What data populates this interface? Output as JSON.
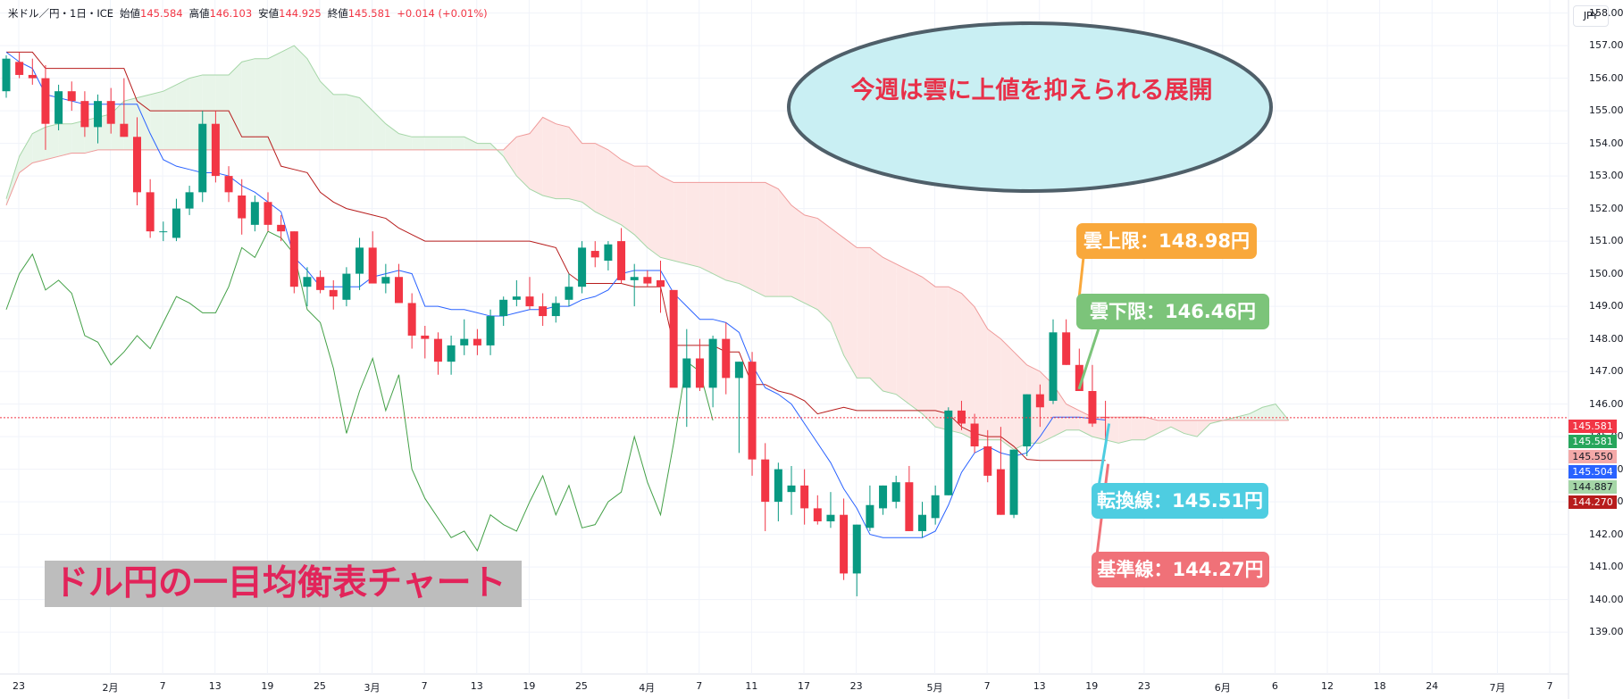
{
  "header": {
    "symbol": "米ドル／円・1日・ICE",
    "open_label": "始値",
    "open": "145.584",
    "high_label": "高値",
    "high": "146.103",
    "low_label": "安値",
    "low": "144.925",
    "close_label": "終値",
    "close": "145.581",
    "change": "+0.014 (+0.01%)"
  },
  "currency_button": "JPY",
  "price_tags": [
    {
      "label": "145.581",
      "color": "#f23645"
    },
    {
      "label": "145.581",
      "color": "#26a65b"
    },
    {
      "label": "145.550",
      "color": "#f4a9a8"
    },
    {
      "label": "145.504",
      "color": "#2962ff"
    },
    {
      "label": "144.887",
      "color": "#a5d6a7"
    },
    {
      "label": "144.270",
      "color": "#b71c1c"
    }
  ],
  "annotations": {
    "ellipse_text": "今週は雲に上値を抑えられる展開",
    "cloud_upper": "雲上限：148.98円",
    "cloud_lower": "雲下限：146.46円",
    "tenkan": "転換線：145.51円",
    "kijun": "基準線：144.27円",
    "title": "ドル円の一目均衡表チャート"
  },
  "colors": {
    "up": "#089981",
    "down": "#f23645",
    "tenkan": "#2962ff",
    "kijun": "#b71c1c",
    "chikou": "#43a047",
    "span_a": "#a5d6a7",
    "span_b": "#ef9a9a",
    "cloud_bull": "#e8f5e9",
    "cloud_bear": "#fde7e6",
    "callout_upper": "#f9a83b",
    "callout_lower": "#7cc47a",
    "callout_tenkan": "#4ecde1",
    "callout_kijun": "#f07178",
    "ellipse_fill": "#c9eff3",
    "ellipse_border": "#4f5f69"
  },
  "chart_data": {
    "type": "candlestick",
    "ylim": [
      138.4,
      158.4
    ],
    "y_ticks": [
      139,
      140,
      141,
      142,
      143,
      144,
      145,
      146,
      147,
      148,
      149,
      150,
      151,
      152,
      153,
      154,
      155,
      156,
      157,
      158
    ],
    "y_tick_labels": [
      "139.000",
      "140.000",
      "141.000",
      "142.000",
      "143.000",
      "144.000",
      "145.000",
      "146.000",
      "147.000",
      "148.000",
      "149.000",
      "150.000",
      "151.000",
      "152.000",
      "153.000",
      "154.000",
      "155.000",
      "156.000",
      "157.000",
      "158.000"
    ],
    "x_ticks": [
      {
        "label": "23",
        "i": 0
      },
      {
        "label": "2月",
        "i": 7
      },
      {
        "label": "7",
        "i": 11
      },
      {
        "label": "13",
        "i": 15
      },
      {
        "label": "19",
        "i": 19
      },
      {
        "label": "25",
        "i": 23
      },
      {
        "label": "3月",
        "i": 27
      },
      {
        "label": "7",
        "i": 31
      },
      {
        "label": "13",
        "i": 35
      },
      {
        "label": "19",
        "i": 39
      },
      {
        "label": "25",
        "i": 43
      },
      {
        "label": "4月",
        "i": 48
      },
      {
        "label": "7",
        "i": 52
      },
      {
        "label": "11",
        "i": 56
      },
      {
        "label": "17",
        "i": 60
      },
      {
        "label": "23",
        "i": 64
      },
      {
        "label": "5月",
        "i": 70
      },
      {
        "label": "7",
        "i": 74
      },
      {
        "label": "13",
        "i": 78
      },
      {
        "label": "19",
        "i": 82
      },
      {
        "label": "23",
        "i": 86
      },
      {
        "label": "6月",
        "i": 92
      },
      {
        "label": "6",
        "i": 96
      },
      {
        "label": "12",
        "i": 100
      },
      {
        "label": "18",
        "i": 104
      },
      {
        "label": "24",
        "i": 108
      },
      {
        "label": "7月",
        "i": 113
      },
      {
        "label": "7",
        "i": 117
      }
    ],
    "candles": [
      [
        155.6,
        156.7,
        155.4,
        156.6
      ],
      [
        156.5,
        156.8,
        156.0,
        156.1
      ],
      [
        156.1,
        156.6,
        155.8,
        156.0
      ],
      [
        156.0,
        156.4,
        153.8,
        154.6
      ],
      [
        154.6,
        155.8,
        154.4,
        155.6
      ],
      [
        155.6,
        155.9,
        155.0,
        155.3
      ],
      [
        155.3,
        155.6,
        154.2,
        154.5
      ],
      [
        154.5,
        155.5,
        154.0,
        155.3
      ],
      [
        155.3,
        155.7,
        154.3,
        154.6
      ],
      [
        154.6,
        156.0,
        154.2,
        154.2
      ],
      [
        154.2,
        154.8,
        152.1,
        152.5
      ],
      [
        152.5,
        152.9,
        151.1,
        151.3
      ],
      [
        151.3,
        151.6,
        151.0,
        151.3
      ],
      [
        151.1,
        152.3,
        151.0,
        152.0
      ],
      [
        152.0,
        152.7,
        151.8,
        152.5
      ],
      [
        152.5,
        155.0,
        152.2,
        154.6
      ],
      [
        154.6,
        155.0,
        152.8,
        153.0
      ],
      [
        153.0,
        153.3,
        152.2,
        152.5
      ],
      [
        152.4,
        152.9,
        151.2,
        151.7
      ],
      [
        151.5,
        152.4,
        151.3,
        152.2
      ],
      [
        152.2,
        152.5,
        151.3,
        151.5
      ],
      [
        151.5,
        151.8,
        151.0,
        151.3
      ],
      [
        151.3,
        151.3,
        149.4,
        149.6
      ],
      [
        149.6,
        150.2,
        149.0,
        149.9
      ],
      [
        149.9,
        150.1,
        149.4,
        149.5
      ],
      [
        149.5,
        149.8,
        148.9,
        149.3
      ],
      [
        149.2,
        150.2,
        149.0,
        150.0
      ],
      [
        150.0,
        151.1,
        149.5,
        150.8
      ],
      [
        150.8,
        151.3,
        149.8,
        149.7
      ],
      [
        149.7,
        150.3,
        149.4,
        149.9
      ],
      [
        149.9,
        150.3,
        149.2,
        149.1
      ],
      [
        149.1,
        149.4,
        147.7,
        148.1
      ],
      [
        148.1,
        148.4,
        147.4,
        148.0
      ],
      [
        148.0,
        148.2,
        146.9,
        147.3
      ],
      [
        147.3,
        148.1,
        146.9,
        147.8
      ],
      [
        147.8,
        148.6,
        147.5,
        148.0
      ],
      [
        148.0,
        148.3,
        147.5,
        147.8
      ],
      [
        147.8,
        148.9,
        147.5,
        148.7
      ],
      [
        148.7,
        149.3,
        148.4,
        149.2
      ],
      [
        149.2,
        149.8,
        149.0,
        149.3
      ],
      [
        149.3,
        149.9,
        148.9,
        149.0
      ],
      [
        149.0,
        149.4,
        148.4,
        148.7
      ],
      [
        148.7,
        149.3,
        148.5,
        149.1
      ],
      [
        149.2,
        150.0,
        149.0,
        149.6
      ],
      [
        149.6,
        151.0,
        149.4,
        150.8
      ],
      [
        150.7,
        151.0,
        150.2,
        150.5
      ],
      [
        150.4,
        151.0,
        150.1,
        150.9
      ],
      [
        151.0,
        151.4,
        149.7,
        149.8
      ],
      [
        149.8,
        150.3,
        149.0,
        149.9
      ],
      [
        149.9,
        150.1,
        149.6,
        149.7
      ],
      [
        149.8,
        150.4,
        148.8,
        149.6
      ],
      [
        149.5,
        149.5,
        146.6,
        146.5
      ],
      [
        146.5,
        148.3,
        145.3,
        147.4
      ],
      [
        147.4,
        148.0,
        146.4,
        146.5
      ],
      [
        146.5,
        148.1,
        145.9,
        148.0
      ],
      [
        148.0,
        148.5,
        146.3,
        146.8
      ],
      [
        146.8,
        147.3,
        144.5,
        147.3
      ],
      [
        147.3,
        147.6,
        143.8,
        144.3
      ],
      [
        144.3,
        144.8,
        142.1,
        143.0
      ],
      [
        143.0,
        144.2,
        142.4,
        144.0
      ],
      [
        143.3,
        144.1,
        142.6,
        143.5
      ],
      [
        143.5,
        144.0,
        142.3,
        142.8
      ],
      [
        142.8,
        143.2,
        142.3,
        142.4
      ],
      [
        142.4,
        143.3,
        142.2,
        142.6
      ],
      [
        142.6,
        143.1,
        140.6,
        140.8
      ],
      [
        140.8,
        142.3,
        140.1,
        142.3
      ],
      [
        142.2,
        143.5,
        142.1,
        142.9
      ],
      [
        142.8,
        143.5,
        142.6,
        143.5
      ],
      [
        143.0,
        143.8,
        142.8,
        143.6
      ],
      [
        143.6,
        144.1,
        142.1,
        142.1
      ],
      [
        142.1,
        143.0,
        141.9,
        142.6
      ],
      [
        142.5,
        143.5,
        142.3,
        143.2
      ],
      [
        143.2,
        145.9,
        143.2,
        145.8
      ],
      [
        145.8,
        146.1,
        145.2,
        145.4
      ],
      [
        145.4,
        145.7,
        144.5,
        144.7
      ],
      [
        144.7,
        145.2,
        143.6,
        143.8
      ],
      [
        144.0,
        145.3,
        142.6,
        142.6
      ],
      [
        142.6,
        144.5,
        142.5,
        144.6
      ],
      [
        144.7,
        146.3,
        144.4,
        146.3
      ],
      [
        146.3,
        146.6,
        145.3,
        145.9
      ],
      [
        146.1,
        148.6,
        146.0,
        148.2
      ],
      [
        148.2,
        148.6,
        147.2,
        147.2
      ],
      [
        147.2,
        147.7,
        146.6,
        146.4
      ],
      [
        146.4,
        147.2,
        145.3,
        145.4
      ],
      [
        145.6,
        146.1,
        144.9,
        145.581
      ]
    ],
    "tenkan": [
      156.8,
      156.5,
      156.3,
      155.5,
      155.4,
      155.3,
      155.2,
      155.2,
      155.2,
      155.2,
      155.2,
      154.3,
      153.5,
      153.3,
      153.2,
      153.1,
      153.1,
      153.0,
      152.7,
      152.5,
      152.2,
      151.9,
      150.5,
      150.1,
      149.6,
      149.6,
      149.6,
      149.6,
      149.9,
      150.0,
      150.1,
      150.0,
      149.0,
      149.0,
      148.9,
      148.9,
      148.8,
      148.7,
      148.7,
      148.8,
      148.9,
      148.9,
      149.0,
      149.0,
      149.2,
      149.3,
      149.5,
      150.0,
      150.1,
      150.1,
      150.1,
      149.4,
      149.0,
      148.6,
      148.6,
      148.5,
      148.2,
      147.2,
      146.5,
      146.3,
      146.0,
      145.4,
      144.8,
      144.2,
      143.4,
      142.8,
      142.0,
      141.9,
      141.9,
      141.9,
      141.9,
      142.1,
      142.9,
      143.9,
      144.5,
      144.7,
      144.5,
      144.4,
      144.5,
      145.0,
      145.6,
      145.6,
      145.6,
      145.55,
      145.51
    ],
    "kijun": [
      156.8,
      156.8,
      156.8,
      156.3,
      156.3,
      156.3,
      156.3,
      156.3,
      156.3,
      156.3,
      155.3,
      155.0,
      155.0,
      155.0,
      155.0,
      155.0,
      155.0,
      155.0,
      154.2,
      154.2,
      154.2,
      153.3,
      153.2,
      153.1,
      152.5,
      152.2,
      152.0,
      151.9,
      151.8,
      151.7,
      151.4,
      151.2,
      151.0,
      151.0,
      151.0,
      151.0,
      151.0,
      151.0,
      151.0,
      151.0,
      151.0,
      150.9,
      150.8,
      150.0,
      149.7,
      149.7,
      149.7,
      149.7,
      149.6,
      149.6,
      149.6,
      147.8,
      147.8,
      147.8,
      147.8,
      147.6,
      147.6,
      146.6,
      146.6,
      146.4,
      146.3,
      146.1,
      145.7,
      145.8,
      145.9,
      145.8,
      145.8,
      145.8,
      145.8,
      145.8,
      145.8,
      145.8,
      145.7,
      145.3,
      145.1,
      145.0,
      145.0,
      144.7,
      144.3,
      144.27,
      144.27,
      144.27,
      144.27,
      144.27,
      144.27
    ],
    "chikou": [
      148.9,
      150.0,
      150.6,
      149.5,
      149.8,
      149.4,
      148.1,
      147.9,
      147.2,
      147.6,
      148.1,
      147.7,
      148.5,
      149.3,
      149.1,
      148.8,
      148.8,
      149.6,
      150.8,
      150.5,
      151.3,
      151.1,
      150.6,
      148.9,
      148.5,
      147.1,
      145.1,
      146.4,
      147.4,
      145.8,
      146.9,
      144.0,
      143.1,
      142.5,
      141.9,
      142.1,
      141.5,
      142.6,
      142.3,
      142.1,
      143.0,
      143.8,
      142.6,
      143.5,
      142.2,
      142.3,
      143.0,
      143.3,
      145.0,
      143.6,
      142.6,
      144.8,
      147.3,
      147.0,
      145.5
    ],
    "span_a": [
      152.3,
      153.6,
      154.3,
      154.5,
      154.6,
      154.6,
      154.7,
      154.8,
      154.9,
      155.3,
      155.4,
      155.5,
      155.6,
      155.8,
      156.0,
      156.1,
      156.1,
      156.1,
      156.5,
      156.6,
      156.6,
      156.8,
      157.0,
      156.6,
      155.9,
      155.5,
      155.5,
      155.4,
      155.0,
      154.6,
      154.3,
      154.2,
      154.2,
      154.2,
      154.2,
      154.2,
      154.0,
      154.0,
      153.6,
      153.0,
      152.6,
      152.4,
      152.3,
      152.3,
      152.2,
      151.9,
      151.7,
      151.5,
      151.2,
      150.8,
      150.5,
      150.4,
      150.3,
      150.2,
      150.0,
      149.8,
      149.7,
      149.5,
      149.3,
      149.3,
      149.3,
      149.1,
      148.9,
      148.5,
      147.5,
      146.8,
      146.8,
      146.4,
      146.3,
      146.0,
      145.7,
      145.3,
      145.2,
      145.1,
      144.9,
      144.9,
      144.9,
      144.6,
      144.8,
      144.8,
      145.0,
      145.2,
      145.2,
      145.0,
      144.9,
      144.8,
      144.9,
      144.9,
      145.1,
      145.3,
      145.1,
      145.0,
      145.4,
      145.5,
      145.6,
      145.7,
      145.9,
      146.0,
      145.5
    ],
    "span_b": [
      152.1,
      153.1,
      153.4,
      153.5,
      153.6,
      153.7,
      153.7,
      153.8,
      153.8,
      153.8,
      153.8,
      153.8,
      153.8,
      153.8,
      153.8,
      153.8,
      153.8,
      153.8,
      153.8,
      153.8,
      153.8,
      153.8,
      153.8,
      153.8,
      153.8,
      153.8,
      153.8,
      153.8,
      153.8,
      153.8,
      153.8,
      153.8,
      153.8,
      153.8,
      153.8,
      153.8,
      153.8,
      153.8,
      153.8,
      154.2,
      154.3,
      154.8,
      154.6,
      154.5,
      154.0,
      154.0,
      153.8,
      153.5,
      153.3,
      153.3,
      153.0,
      152.8,
      152.8,
      152.8,
      152.8,
      152.8,
      152.8,
      152.8,
      152.8,
      152.6,
      152.1,
      151.8,
      151.7,
      151.4,
      151.1,
      150.8,
      150.8,
      150.5,
      150.3,
      150.1,
      149.9,
      149.6,
      149.6,
      149.4,
      148.98,
      148.3,
      148.0,
      147.6,
      147.2,
      147.0,
      146.6,
      146.0,
      145.8,
      145.6,
      145.6,
      145.6,
      145.6,
      145.6,
      145.5,
      145.5,
      145.5,
      145.5,
      145.5,
      145.5,
      145.5,
      145.5,
      145.5,
      145.5,
      145.5
    ]
  }
}
